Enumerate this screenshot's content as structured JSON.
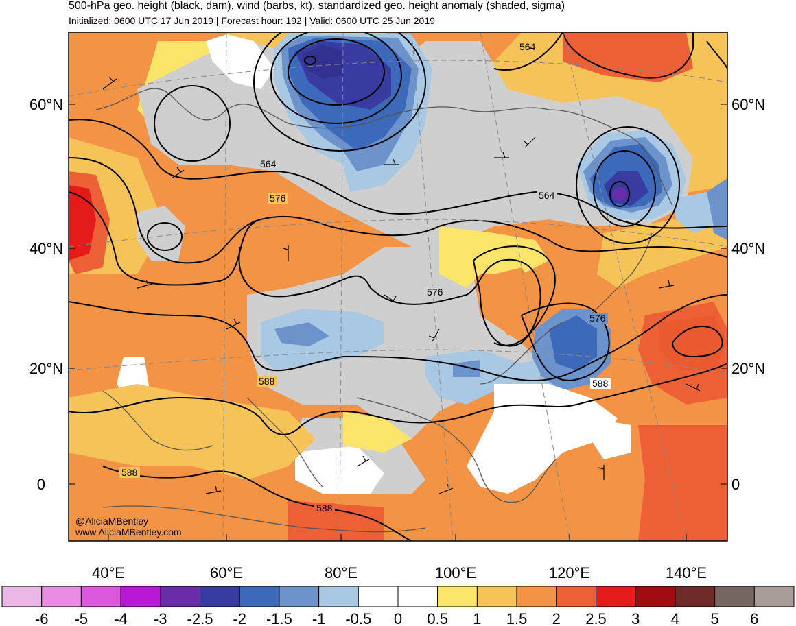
{
  "header": {
    "title": "500-hPa geo. height (black, dam), wind (barbs, kt), standardized geo. height anomaly (shaded, sigma)",
    "subtitle": "Initialized: 0600 UTC 17 Jun 2019 | Forecast hour: 192 | Valid: 0600 UTC 25 Jun 2019"
  },
  "map": {
    "lat_labels": [
      "60°N",
      "40°N",
      "20°N",
      "0"
    ],
    "lon_labels": [
      "40°E",
      "60°E",
      "80°E",
      "100°E",
      "120°E",
      "140°E"
    ],
    "contour_labels": [
      "564",
      "564",
      "576",
      "564",
      "576",
      "576",
      "588",
      "588",
      "588",
      "588"
    ],
    "credit": [
      "@AliciaMBentley",
      "www.AliciaMBentley.com"
    ]
  },
  "colorbar": {
    "labels": [
      "-6",
      "-5",
      "-4",
      "-3",
      "-2.5",
      "-2",
      "-1.5",
      "-1",
      "-0.5",
      "0",
      "0.5",
      "1",
      "1.5",
      "2",
      "2.5",
      "3",
      "4",
      "5",
      "6"
    ],
    "colors": [
      "#eab7e7",
      "#e98ce2",
      "#dc58dc",
      "#b618d6",
      "#6a2ca8",
      "#3a3ba0",
      "#3d69ba",
      "#6c93cc",
      "#a8c8e4",
      "#ffffff",
      "#ffffff",
      "#fae46a",
      "#f6c359",
      "#f39346",
      "#ed6035",
      "#e41b19",
      "#a10c0f",
      "#6e2b27",
      "#756662",
      "#a89b98"
    ]
  },
  "colors": {
    "neutral_gray": "#cfcfcf",
    "coastline": "#555555",
    "contour": "#000000"
  }
}
